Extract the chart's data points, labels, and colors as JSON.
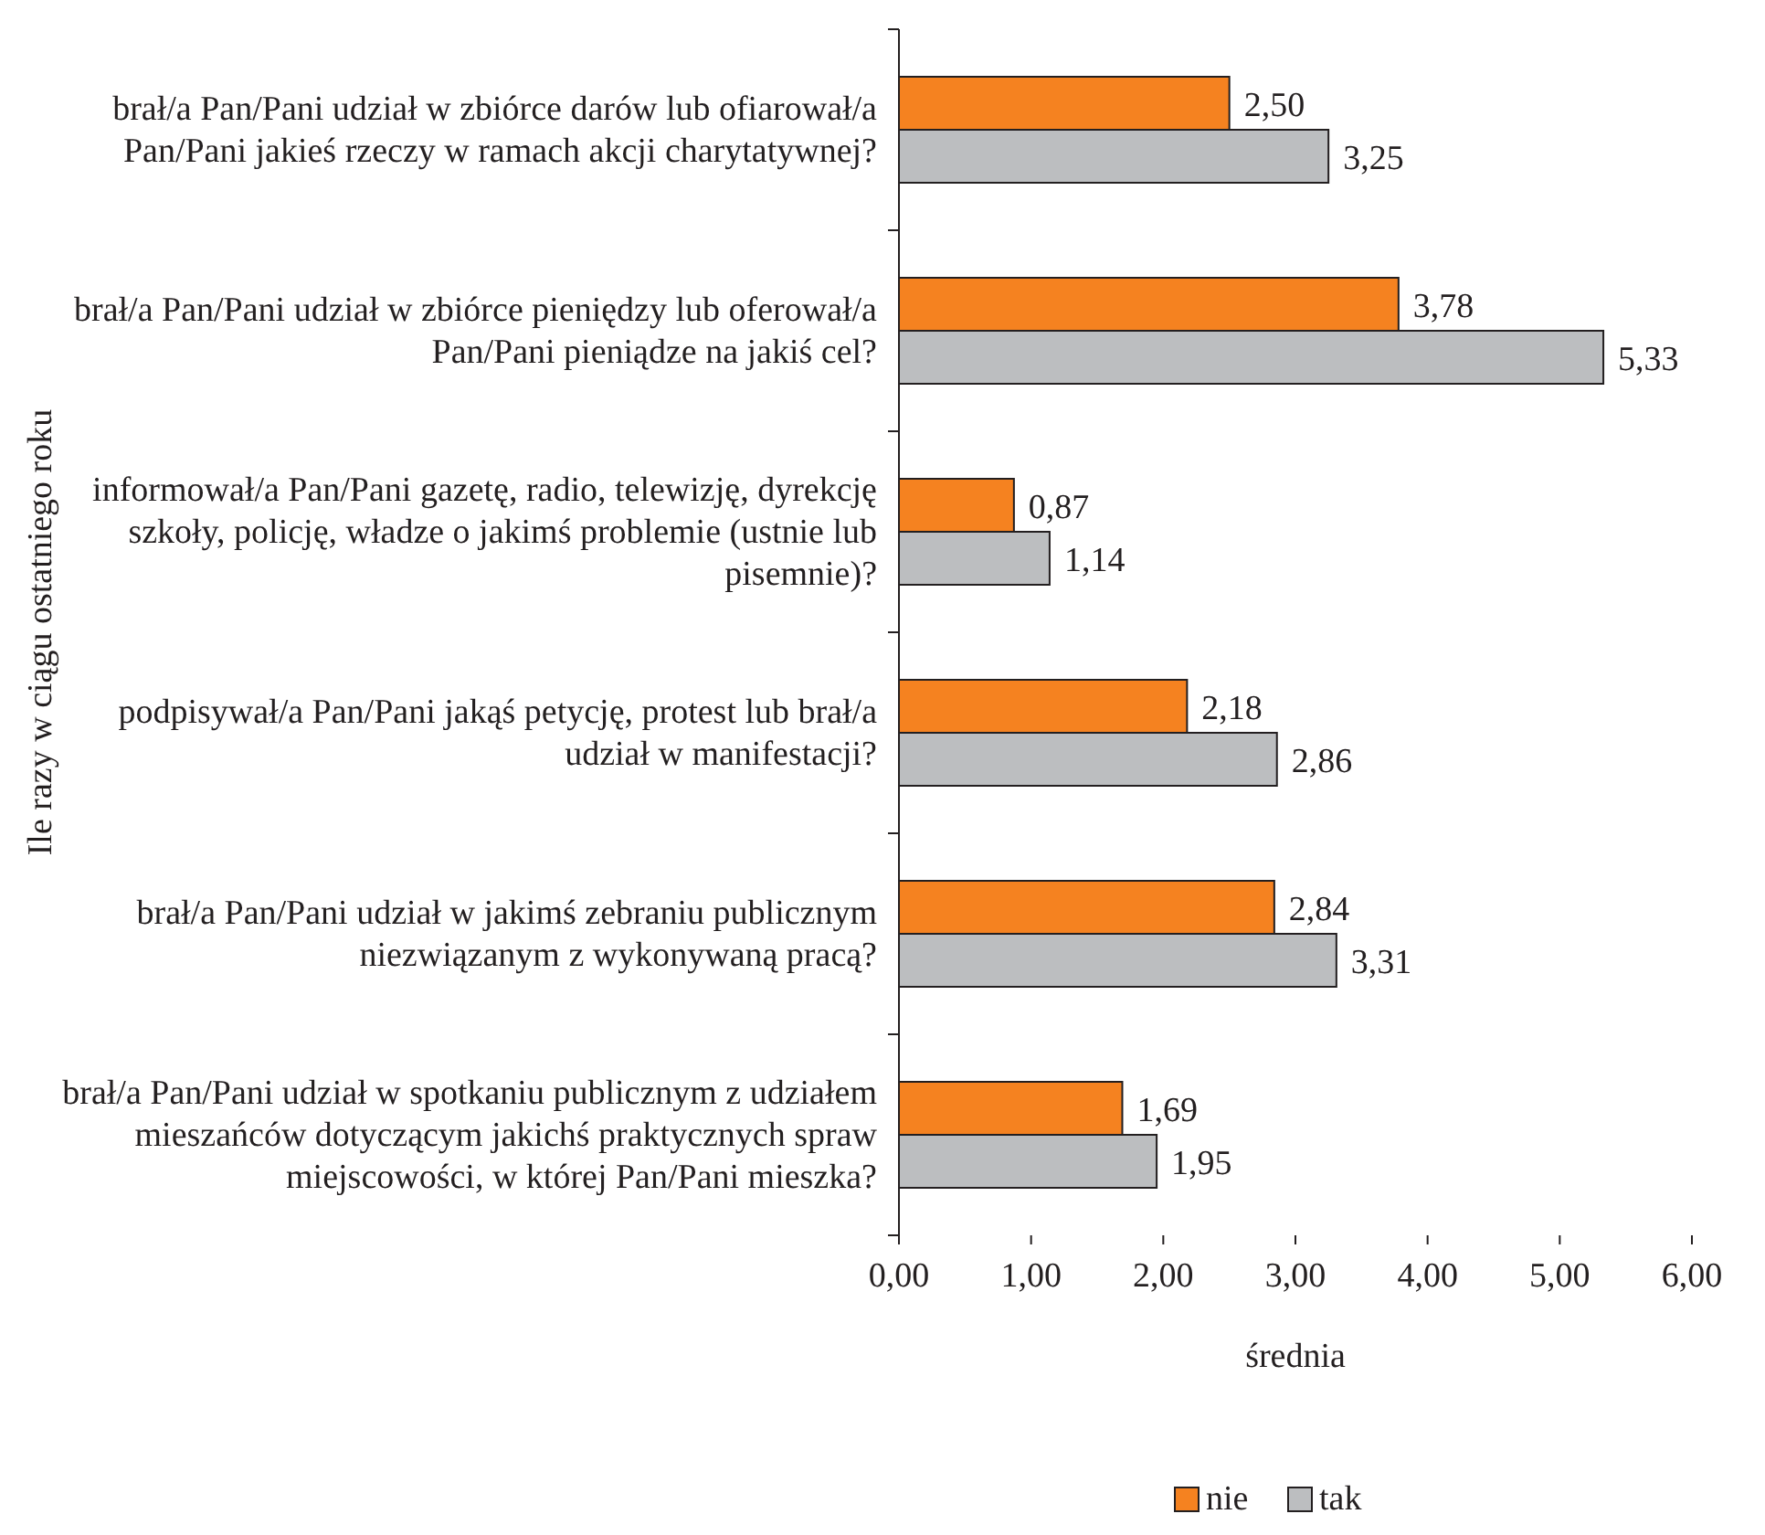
{
  "chart_data": {
    "type": "bar",
    "orientation": "horizontal",
    "ylabel": "Ile razy w ciągu ostatniego roku",
    "xlabel": "średnia",
    "categories": [
      "brał/a Pan/Pani udział w zbiórce darów lub ofiarował/a Pan/Pani jakieś rzeczy w ramach akcji charytatywnej?",
      "brał/a Pan/Pani udział w zbiórce pieniędzy lub oferował/a Pan/Pani pieniądze na jakiś cel?",
      "informował/a Pan/Pani gazetę, radio, telewizję, dyrekcję szkoły, policję, władze o jakimś problemie (ustnie lub pisemnie)?",
      "podpisywał/a Pan/Pani jakąś petycję, protest lub brał/a udział w manifestacji?",
      "brał/a Pan/Pani udział w jakimś zebraniu publicznym niezwiązanym z wykonywaną pracą?",
      "brał/a Pan/Pani udział w spotkaniu publicznym z udziałem mieszańców dotyczącym jakichś praktycznych spraw miejscowości, w której Pan/Pani mieszka?"
    ],
    "series": [
      {
        "name": "nie",
        "color": "#f58220",
        "values": [
          2.5,
          3.78,
          0.87,
          2.18,
          2.84,
          1.69
        ],
        "value_labels": [
          "2,50",
          "3,78",
          "0,87",
          "2,18",
          "2,84",
          "1,69"
        ]
      },
      {
        "name": "tak",
        "color": "#bcbec0",
        "values": [
          3.25,
          5.33,
          1.14,
          2.86,
          3.31,
          1.95
        ],
        "value_labels": [
          "3,25",
          "5,33",
          "1,14",
          "2,86",
          "3,31",
          "1,95"
        ]
      }
    ],
    "xlim": [
      0,
      6
    ],
    "xticks": [
      {
        "value": 0,
        "label": "0,00"
      },
      {
        "value": 1,
        "label": "1,00"
      },
      {
        "value": 2,
        "label": "2,00"
      },
      {
        "value": 3,
        "label": "3,00"
      },
      {
        "value": 4,
        "label": "4,00"
      },
      {
        "value": 5,
        "label": "5,00"
      },
      {
        "value": 6,
        "label": "6,00"
      }
    ],
    "legend": "bottom",
    "grid": false
  }
}
